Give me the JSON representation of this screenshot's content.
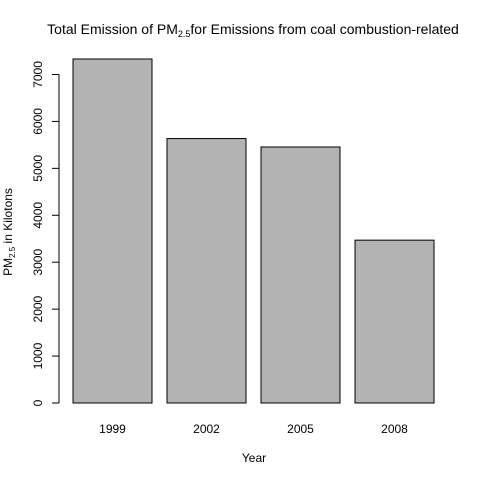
{
  "chart_data": {
    "type": "bar",
    "title_parts": {
      "prefix": "Total Emission of PM",
      "subscript": "2.5",
      "suffix": "for Emissions from coal combustion-related"
    },
    "xlabel": "Year",
    "ylabel_parts": {
      "prefix": "PM",
      "subscript": "2.5",
      "suffix": " in Kilotons"
    },
    "categories": [
      "1999",
      "2002",
      "2005",
      "2008"
    ],
    "values": [
      7330,
      5635,
      5455,
      3470
    ],
    "ylim": [
      0,
      7330
    ],
    "yticks": [
      0,
      1000,
      2000,
      3000,
      4000,
      5000,
      6000,
      7000
    ],
    "bar_color": "#b3b3b3",
    "bar_stroke": "#000000"
  }
}
